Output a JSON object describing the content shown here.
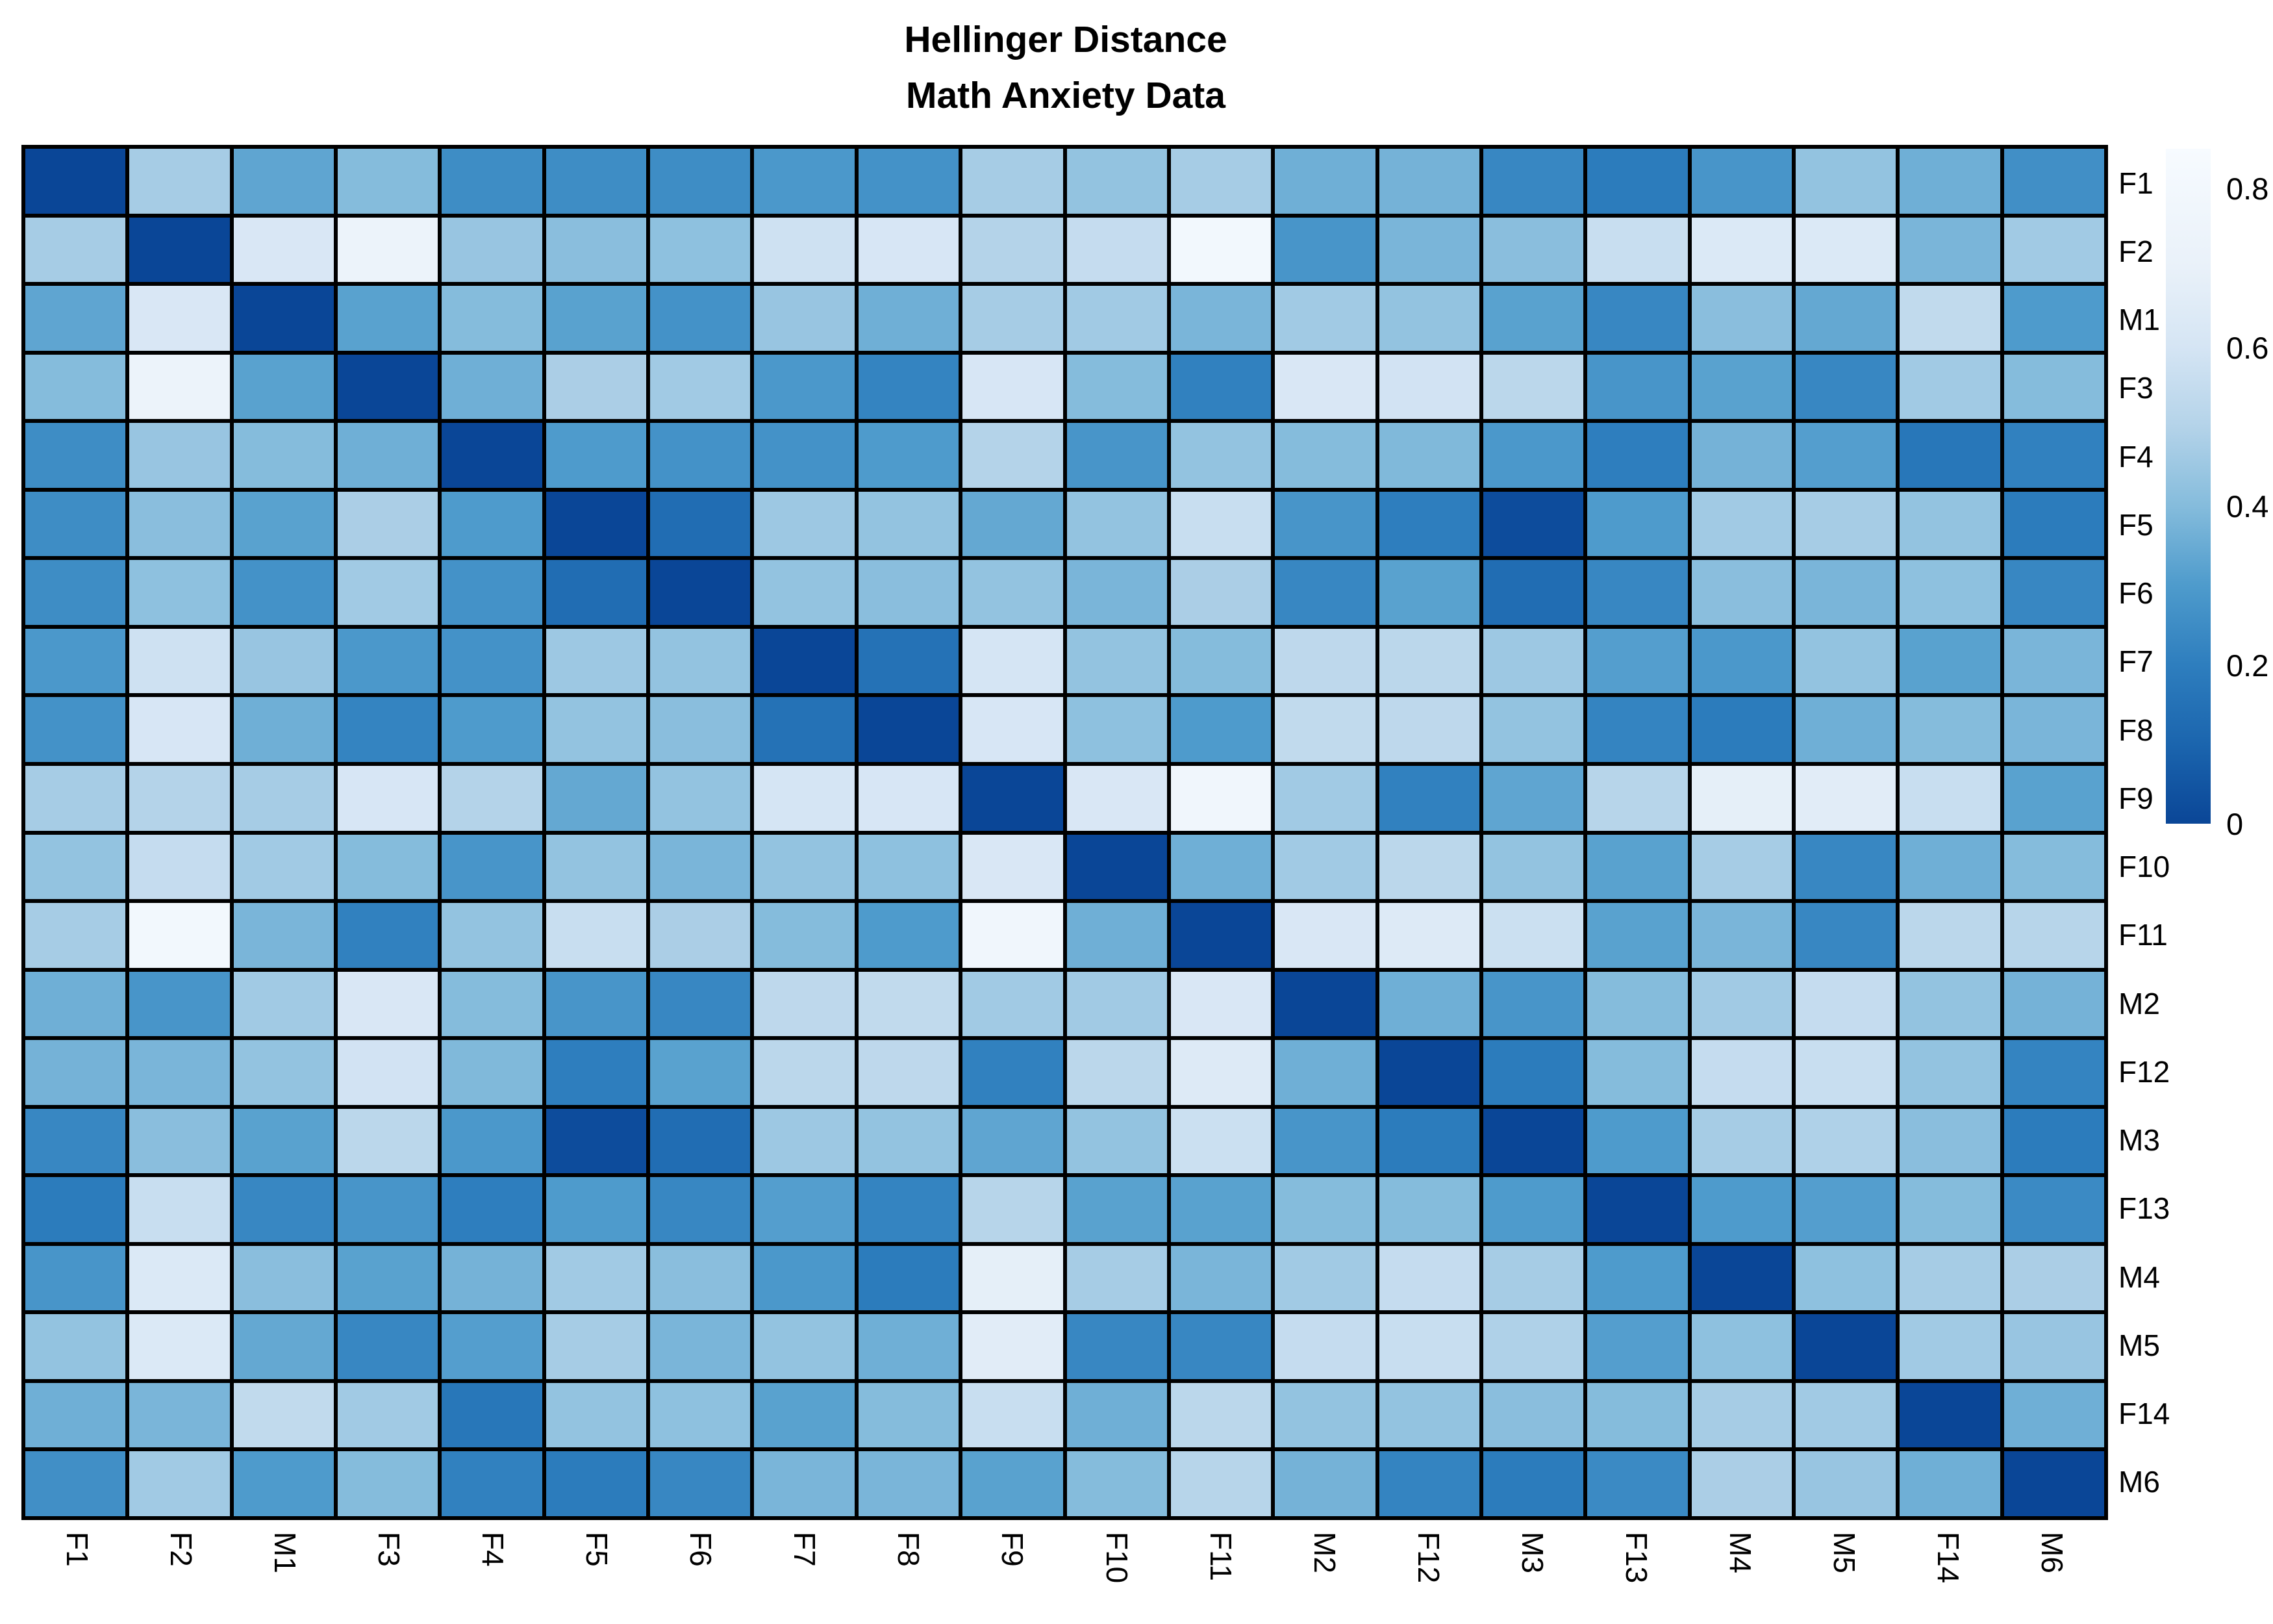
{
  "title": {
    "line1": "Hellinger Distance",
    "line2": "Math Anxiety Data"
  },
  "colors": {
    "background": "#ffffff",
    "text": "#000000",
    "grid_line": "#000000",
    "min_value_color": "#0a4697",
    "max_value_color": "#f7fbff"
  },
  "chart_data": {
    "type": "heatmap",
    "title": "Hellinger Distance",
    "subtitle": "Math Anxiety Data",
    "row_labels": [
      "F1",
      "F2",
      "M1",
      "F3",
      "F4",
      "F5",
      "F6",
      "F7",
      "F8",
      "F9",
      "F10",
      "F11",
      "M2",
      "F12",
      "M3",
      "F13",
      "M4",
      "M5",
      "F14",
      "M6"
    ],
    "col_labels": [
      "F1",
      "F2",
      "M1",
      "F3",
      "F4",
      "F5",
      "F6",
      "F7",
      "F8",
      "F9",
      "F10",
      "F11",
      "M2",
      "F12",
      "M3",
      "F13",
      "M4",
      "M5",
      "F14",
      "M6"
    ],
    "value_range": [
      0,
      0.85
    ],
    "grid_on": true,
    "legend_position": "right",
    "colormap_stops": [
      [
        0.0,
        "#0a4697"
      ],
      [
        0.1,
        "#1b65ae"
      ],
      [
        0.2,
        "#2e7ebe"
      ],
      [
        0.3,
        "#4e9bcc"
      ],
      [
        0.4,
        "#85bcdc"
      ],
      [
        0.5,
        "#b4d3e9"
      ],
      [
        0.6,
        "#d5e5f4"
      ],
      [
        0.7,
        "#e9f1f9"
      ],
      [
        0.85,
        "#f7fbff"
      ]
    ],
    "legend": {
      "ticks": [
        0.8,
        0.6,
        0.4,
        0.2,
        0
      ],
      "tick_labels": [
        "0.8",
        "0.6",
        "0.4",
        "0.2",
        "0"
      ]
    },
    "matrix": [
      [
        0.0,
        0.47,
        0.33,
        0.4,
        0.25,
        0.25,
        0.25,
        0.29,
        0.27,
        0.47,
        0.43,
        0.47,
        0.36,
        0.37,
        0.23,
        0.19,
        0.28,
        0.43,
        0.36,
        0.26
      ],
      [
        0.47,
        0.0,
        0.62,
        0.73,
        0.44,
        0.41,
        0.42,
        0.58,
        0.61,
        0.5,
        0.55,
        0.8,
        0.28,
        0.38,
        0.41,
        0.56,
        0.63,
        0.63,
        0.38,
        0.46
      ],
      [
        0.33,
        0.62,
        0.0,
        0.32,
        0.4,
        0.32,
        0.27,
        0.44,
        0.36,
        0.47,
        0.46,
        0.38,
        0.46,
        0.43,
        0.32,
        0.23,
        0.41,
        0.34,
        0.54,
        0.3
      ],
      [
        0.4,
        0.73,
        0.32,
        0.0,
        0.36,
        0.48,
        0.46,
        0.29,
        0.22,
        0.61,
        0.4,
        0.21,
        0.62,
        0.59,
        0.52,
        0.28,
        0.32,
        0.23,
        0.46,
        0.4
      ],
      [
        0.25,
        0.44,
        0.4,
        0.36,
        0.0,
        0.3,
        0.27,
        0.27,
        0.3,
        0.5,
        0.28,
        0.43,
        0.4,
        0.39,
        0.29,
        0.2,
        0.37,
        0.31,
        0.17,
        0.21
      ],
      [
        0.25,
        0.41,
        0.32,
        0.48,
        0.3,
        0.0,
        0.13,
        0.45,
        0.43,
        0.34,
        0.43,
        0.56,
        0.28,
        0.2,
        0.02,
        0.3,
        0.46,
        0.47,
        0.43,
        0.19
      ],
      [
        0.25,
        0.42,
        0.27,
        0.46,
        0.27,
        0.13,
        0.0,
        0.43,
        0.41,
        0.43,
        0.38,
        0.48,
        0.23,
        0.32,
        0.13,
        0.23,
        0.41,
        0.38,
        0.42,
        0.23
      ],
      [
        0.29,
        0.58,
        0.44,
        0.29,
        0.27,
        0.45,
        0.43,
        0.0,
        0.15,
        0.6,
        0.43,
        0.4,
        0.53,
        0.52,
        0.45,
        0.31,
        0.29,
        0.43,
        0.32,
        0.38
      ],
      [
        0.27,
        0.61,
        0.36,
        0.22,
        0.3,
        0.43,
        0.41,
        0.15,
        0.0,
        0.61,
        0.42,
        0.3,
        0.54,
        0.53,
        0.43,
        0.22,
        0.19,
        0.36,
        0.4,
        0.38
      ],
      [
        0.47,
        0.5,
        0.47,
        0.61,
        0.5,
        0.34,
        0.43,
        0.6,
        0.61,
        0.0,
        0.62,
        0.78,
        0.46,
        0.21,
        0.33,
        0.51,
        0.68,
        0.66,
        0.56,
        0.32
      ],
      [
        0.43,
        0.55,
        0.46,
        0.4,
        0.28,
        0.43,
        0.38,
        0.43,
        0.42,
        0.62,
        0.0,
        0.36,
        0.46,
        0.52,
        0.43,
        0.32,
        0.47,
        0.23,
        0.36,
        0.4
      ],
      [
        0.47,
        0.8,
        0.38,
        0.21,
        0.43,
        0.56,
        0.48,
        0.4,
        0.3,
        0.78,
        0.36,
        0.0,
        0.62,
        0.64,
        0.57,
        0.32,
        0.38,
        0.23,
        0.52,
        0.51
      ],
      [
        0.36,
        0.28,
        0.46,
        0.62,
        0.4,
        0.28,
        0.23,
        0.53,
        0.54,
        0.46,
        0.46,
        0.62,
        0.0,
        0.36,
        0.28,
        0.4,
        0.46,
        0.55,
        0.43,
        0.37
      ],
      [
        0.37,
        0.38,
        0.43,
        0.59,
        0.39,
        0.2,
        0.32,
        0.52,
        0.53,
        0.21,
        0.52,
        0.64,
        0.36,
        0.0,
        0.19,
        0.4,
        0.55,
        0.56,
        0.43,
        0.22
      ],
      [
        0.23,
        0.41,
        0.32,
        0.52,
        0.29,
        0.02,
        0.13,
        0.45,
        0.43,
        0.33,
        0.43,
        0.57,
        0.28,
        0.19,
        0.0,
        0.3,
        0.47,
        0.49,
        0.41,
        0.19
      ],
      [
        0.19,
        0.56,
        0.23,
        0.28,
        0.2,
        0.3,
        0.23,
        0.31,
        0.22,
        0.51,
        0.32,
        0.32,
        0.4,
        0.4,
        0.3,
        0.0,
        0.3,
        0.31,
        0.4,
        0.24
      ],
      [
        0.28,
        0.63,
        0.41,
        0.32,
        0.37,
        0.46,
        0.41,
        0.29,
        0.19,
        0.68,
        0.47,
        0.38,
        0.46,
        0.55,
        0.47,
        0.3,
        0.0,
        0.42,
        0.47,
        0.48
      ],
      [
        0.43,
        0.63,
        0.34,
        0.23,
        0.31,
        0.47,
        0.38,
        0.43,
        0.36,
        0.66,
        0.23,
        0.23,
        0.55,
        0.56,
        0.49,
        0.31,
        0.42,
        0.0,
        0.46,
        0.44
      ],
      [
        0.36,
        0.38,
        0.54,
        0.46,
        0.17,
        0.43,
        0.42,
        0.32,
        0.4,
        0.56,
        0.36,
        0.52,
        0.43,
        0.43,
        0.41,
        0.4,
        0.47,
        0.46,
        0.0,
        0.36
      ],
      [
        0.26,
        0.46,
        0.3,
        0.4,
        0.21,
        0.19,
        0.23,
        0.38,
        0.38,
        0.32,
        0.4,
        0.51,
        0.37,
        0.22,
        0.19,
        0.24,
        0.48,
        0.44,
        0.36,
        0.0
      ]
    ]
  }
}
